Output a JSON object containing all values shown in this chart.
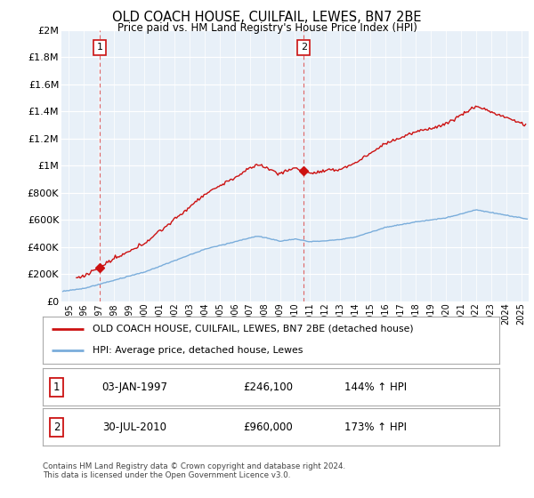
{
  "title": "OLD COACH HOUSE, CUILFAIL, LEWES, BN7 2BE",
  "subtitle": "Price paid vs. HM Land Registry's House Price Index (HPI)",
  "legend_line1": "OLD COACH HOUSE, CUILFAIL, LEWES, BN7 2BE (detached house)",
  "legend_line2": "HPI: Average price, detached house, Lewes",
  "sale1_label": "1",
  "sale1_date": "03-JAN-1997",
  "sale1_price": "£246,100",
  "sale1_hpi": "144% ↑ HPI",
  "sale1_year": 1997.03,
  "sale1_value": 246100,
  "sale2_label": "2",
  "sale2_date": "30-JUL-2010",
  "sale2_price": "£960,000",
  "sale2_hpi": "173% ↑ HPI",
  "sale2_year": 2010.58,
  "sale2_value": 960000,
  "hpi_color": "#7aaddb",
  "price_color": "#cc1111",
  "dashed_color": "#dd5555",
  "background_color": "#e8f0f8",
  "ylim": [
    0,
    2000000
  ],
  "xlim_start": 1994.5,
  "xlim_end": 2025.5,
  "footer": "Contains HM Land Registry data © Crown copyright and database right 2024.\nThis data is licensed under the Open Government Licence v3.0."
}
